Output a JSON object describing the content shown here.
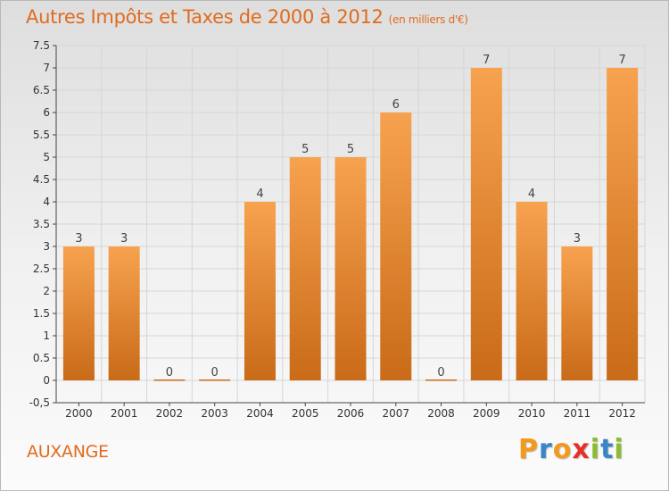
{
  "chart_data": {
    "type": "bar",
    "title": "Autres Impôts et Taxes de 2000 à 2012",
    "subtitle": "(en milliers d'€)",
    "categories": [
      "2000",
      "2001",
      "2002",
      "2003",
      "2004",
      "2005",
      "2006",
      "2007",
      "2008",
      "2009",
      "2010",
      "2011",
      "2012"
    ],
    "values": [
      3,
      3,
      0,
      0,
      4,
      5,
      5,
      6,
      0,
      7,
      4,
      3,
      7
    ],
    "ylim": [
      -0.5,
      7.5
    ],
    "yticks": [
      "-0,5",
      "0",
      "0.5",
      "1",
      "1.5",
      "2",
      "2.5",
      "3",
      "3.5",
      "4",
      "4.5",
      "5",
      "5.5",
      "6",
      "6.5",
      "7",
      "7.5"
    ],
    "ytick_values": [
      -0.5,
      0,
      0.5,
      1,
      1.5,
      2,
      2.5,
      3,
      3.5,
      4,
      4.5,
      5,
      5.5,
      6,
      6.5,
      7,
      7.5
    ],
    "grid": true,
    "bar_color_top": "#f7a24f",
    "bar_color_bottom": "#c96b18"
  },
  "footer": {
    "city": "AUXANGE",
    "logo_letters": [
      "P",
      "r",
      "o",
      "x",
      "i",
      "t",
      "i"
    ],
    "logo_colors": [
      "#f29a1c",
      "#3a84c8",
      "#f29a1c",
      "#e8302a",
      "#8bbd2f",
      "#3a84c8",
      "#8bbd2f"
    ]
  },
  "colors": {
    "accent": "#e06b1e"
  }
}
